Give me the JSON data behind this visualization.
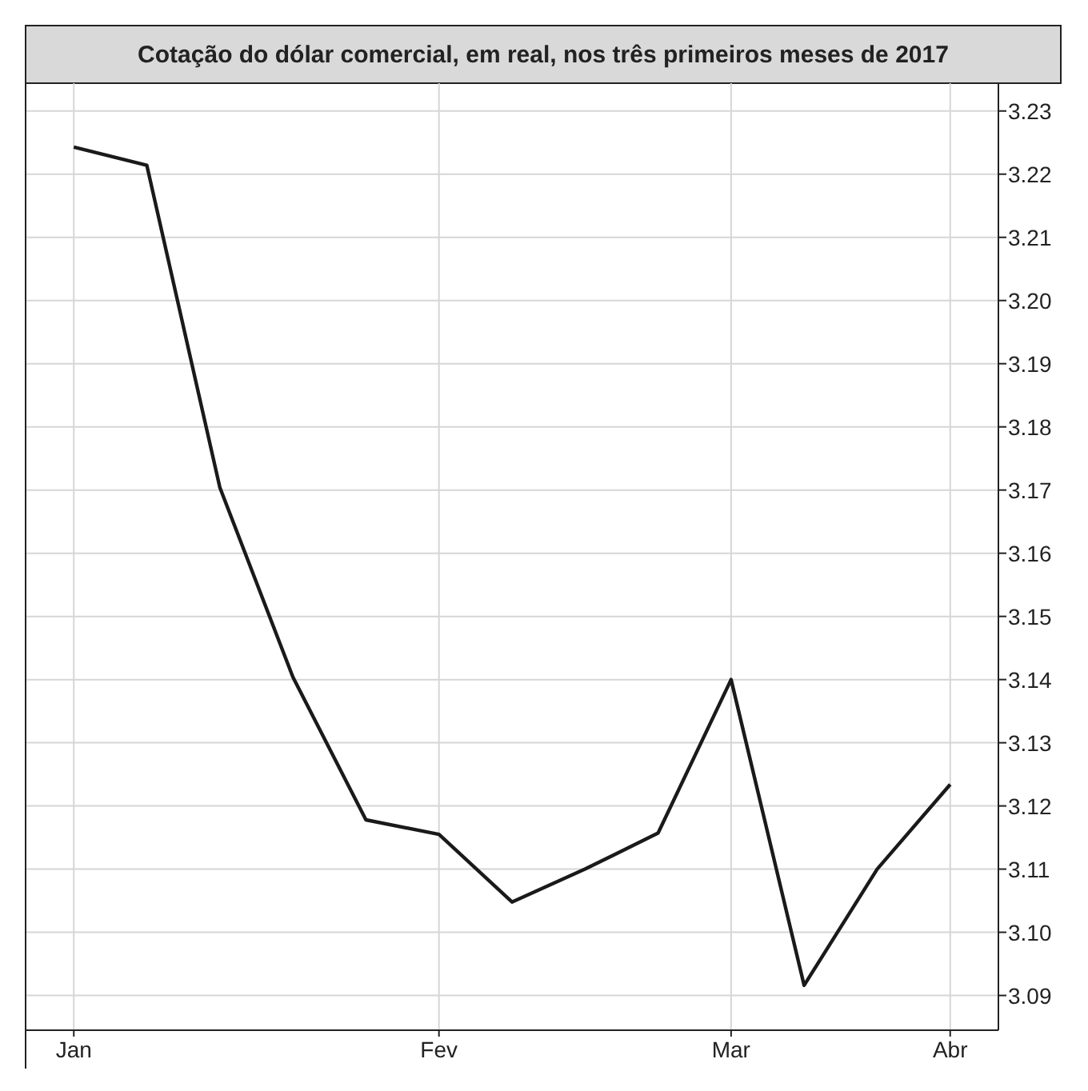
{
  "chart_data": {
    "type": "line",
    "title": "Cotação do dólar comercial, em real, nos três primeiros meses de 2017",
    "categories": [
      "Jan",
      null,
      null,
      null,
      null,
      "Fev",
      null,
      null,
      null,
      "Mar",
      null,
      null,
      "Abr"
    ],
    "series": [
      {
        "color": "#1a1a1a",
        "values": [
          3.2243,
          3.2214,
          3.1704,
          3.1404,
          3.1178,
          3.1155,
          3.1048,
          3.11,
          3.1157,
          3.14,
          3.0916,
          3.11,
          3.1234
        ]
      }
    ],
    "ylim": [
      3.0845,
      3.2344
    ],
    "yticks": [
      {
        "value": 3.09,
        "label": "3.09"
      },
      {
        "value": 3.1,
        "label": "3.10"
      },
      {
        "value": 3.11,
        "label": "3.11"
      },
      {
        "value": 3.12,
        "label": "3.12"
      },
      {
        "value": 3.13,
        "label": "3.13"
      },
      {
        "value": 3.14,
        "label": "3.14"
      },
      {
        "value": 3.15,
        "label": "3.15"
      },
      {
        "value": 3.16,
        "label": "3.16"
      },
      {
        "value": 3.17,
        "label": "3.17"
      },
      {
        "value": 3.18,
        "label": "3.18"
      },
      {
        "value": 3.19,
        "label": "3.19"
      },
      {
        "value": 3.2,
        "label": "3.20"
      },
      {
        "value": 3.21,
        "label": "3.21"
      },
      {
        "value": 3.22,
        "label": "3.22"
      },
      {
        "value": 3.23,
        "label": "3.23"
      }
    ],
    "grid": true,
    "marker": "none",
    "line_style": "solid"
  }
}
